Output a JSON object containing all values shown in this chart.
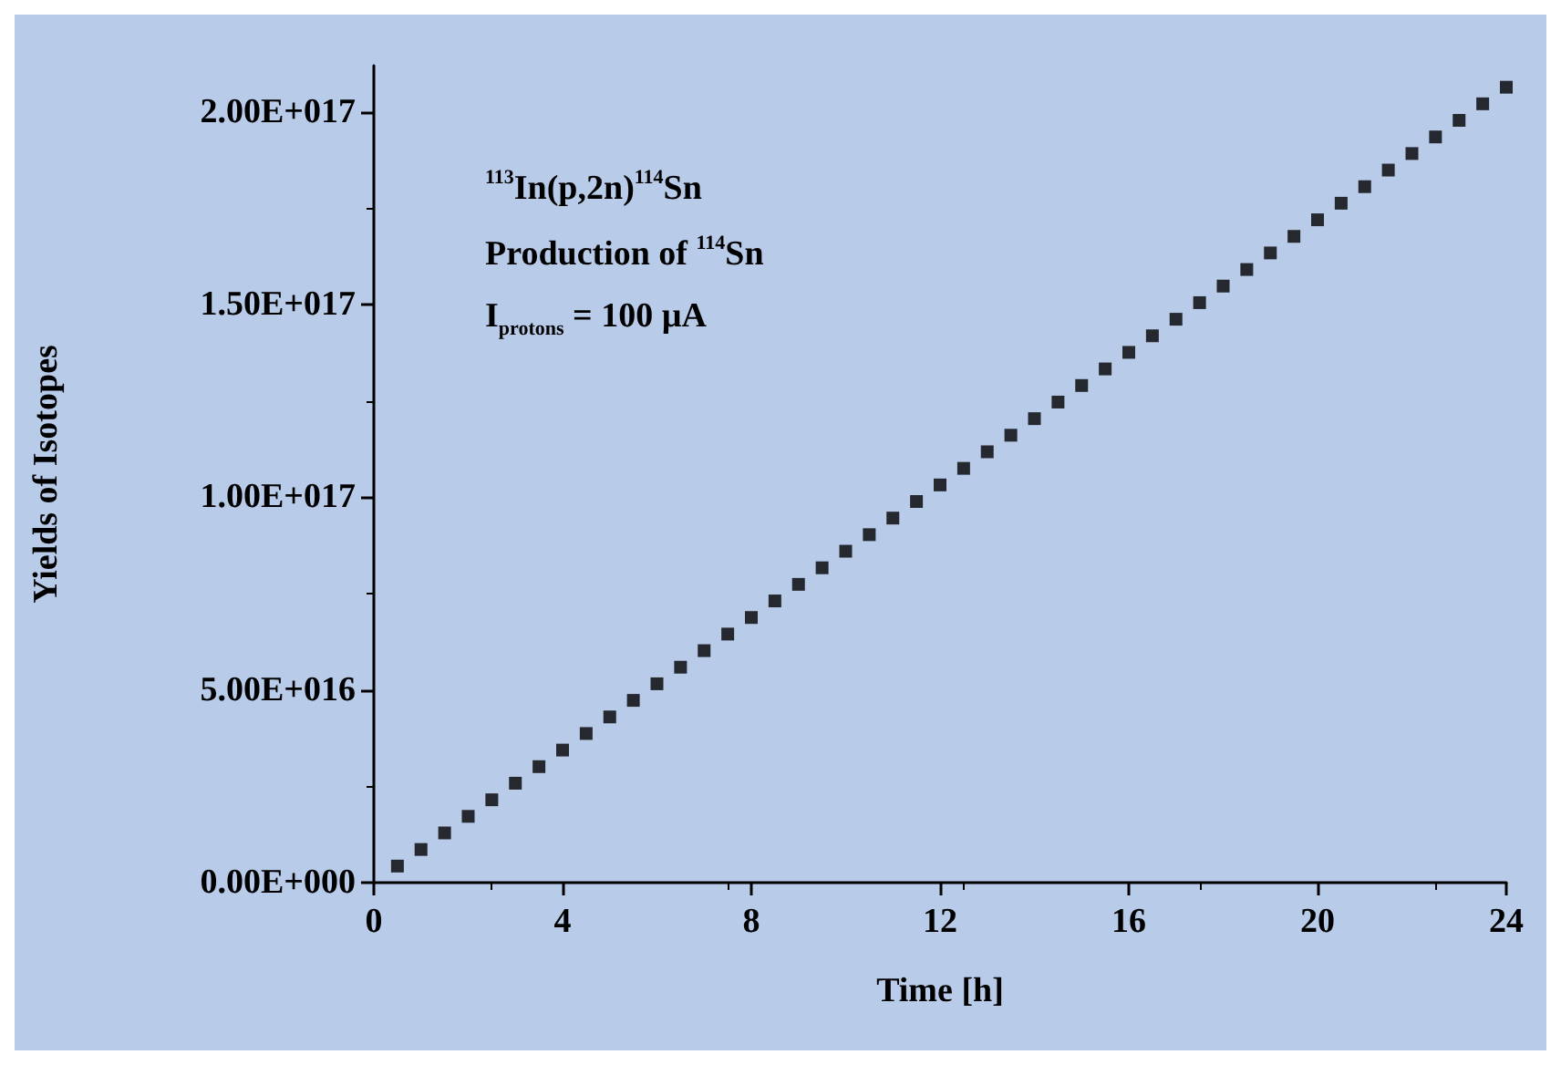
{
  "chart_data": {
    "type": "scatter",
    "xlabel": "Time [h]",
    "ylabel": "Yields of Isotopes",
    "marker": "square",
    "annotations": [
      "$^{113}$In(p,2n)$^{114}$Sn",
      "Production of $^{114}$Sn",
      "I$_{protons}$ = 100 µA"
    ],
    "xlim": [
      0,
      24
    ],
    "xticks": [
      0,
      4,
      8,
      12,
      16,
      20,
      24
    ],
    "ylim": [
      0,
      2.12e+17
    ],
    "yticks": [
      {
        "value": 0,
        "label": "0.00E+000"
      },
      {
        "value": 5e+16,
        "label": "5.00E+016"
      },
      {
        "value": 1e+17,
        "label": "1.00E+017"
      },
      {
        "value": 1.5e+17,
        "label": "1.50E+017"
      },
      {
        "value": 2e+17,
        "label": "2.00E+017"
      }
    ],
    "series": [
      {
        "color": "#000000",
        "x": [
          0.5,
          1,
          1.5,
          2,
          2.5,
          3,
          3.5,
          4,
          4.5,
          5,
          5.5,
          6,
          6.5,
          7,
          7.5,
          8,
          8.5,
          9,
          9.5,
          10,
          10.5,
          11,
          11.5,
          12,
          12.5,
          13,
          13.5,
          14,
          14.5,
          15,
          15.5,
          16,
          16.5,
          17,
          17.5,
          18,
          18.5,
          19,
          19.5,
          20,
          20.5,
          21,
          21.5,
          22,
          22.5,
          23,
          23.5,
          24
        ],
        "values": [
          4300000000000000.0,
          8600000000000000.0,
          1.29e+16,
          1.72e+16,
          2.15e+16,
          2.58e+16,
          3.01e+16,
          3.44e+16,
          3.87e+16,
          4.3e+16,
          4.73e+16,
          5.16e+16,
          5.59e+16,
          6.02e+16,
          6.45e+16,
          6.88e+16,
          7.31e+16,
          7.74e+16,
          8.17e+16,
          8.6e+16,
          9.03e+16,
          9.46e+16,
          9.89e+16,
          1.032e+17,
          1.075e+17,
          1.118e+17,
          1.161e+17,
          1.204e+17,
          1.247e+17,
          1.29e+17,
          1.333e+17,
          1.376e+17,
          1.419e+17,
          1.462e+17,
          1.505e+17,
          1.548e+17,
          1.591e+17,
          1.634e+17,
          1.677e+17,
          1.72e+17,
          1.763e+17,
          1.806e+17,
          1.849e+17,
          1.892e+17,
          1.935e+17,
          1.978e+17,
          2.021e+17,
          2.064e+17
        ]
      }
    ]
  }
}
